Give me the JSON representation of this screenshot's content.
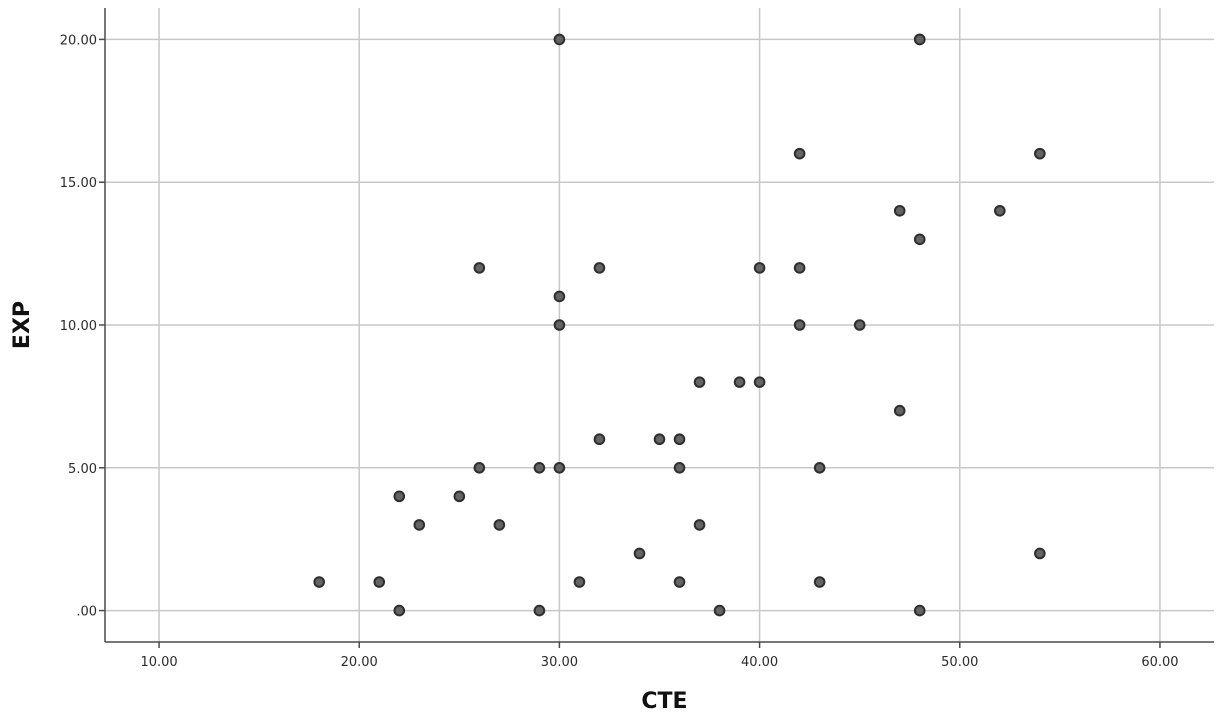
{
  "chart_data": {
    "type": "scatter",
    "title": "",
    "xlabel": "CTE",
    "ylabel": "EXP",
    "xlim": [
      7.3,
      62.7
    ],
    "ylim": [
      -1.1,
      21.1
    ],
    "x_ticks": [
      10,
      20,
      30,
      40,
      50,
      60
    ],
    "x_tick_labels": [
      "10.00",
      "20.00",
      "30.00",
      "40.00",
      "50.00",
      "60.00"
    ],
    "y_ticks": [
      0,
      5,
      10,
      15,
      20
    ],
    "y_tick_labels": [
      ".00",
      "5.00",
      "10.00",
      "15.00",
      "20.00"
    ],
    "grid": true,
    "point_color": "#646464",
    "series": [
      {
        "x": [
          18,
          21,
          22,
          22,
          23,
          25,
          26,
          26,
          27,
          29,
          29,
          30,
          30,
          30,
          30,
          31,
          32,
          32,
          34,
          35,
          36,
          36,
          36,
          37,
          37,
          38,
          39,
          40,
          40,
          42,
          42,
          42,
          43,
          43,
          45,
          47,
          47,
          48,
          48,
          48,
          48,
          52,
          54,
          54
        ],
        "y": [
          1,
          1,
          0,
          4,
          3,
          4,
          5,
          12,
          3,
          0,
          5,
          5,
          10,
          11,
          20,
          1,
          6,
          12,
          2,
          6,
          1,
          5,
          6,
          3,
          8,
          0,
          8,
          8,
          12,
          10,
          12,
          16,
          1,
          5,
          10,
          7,
          14,
          0,
          13,
          20,
          20,
          14,
          2,
          16
        ]
      }
    ]
  }
}
